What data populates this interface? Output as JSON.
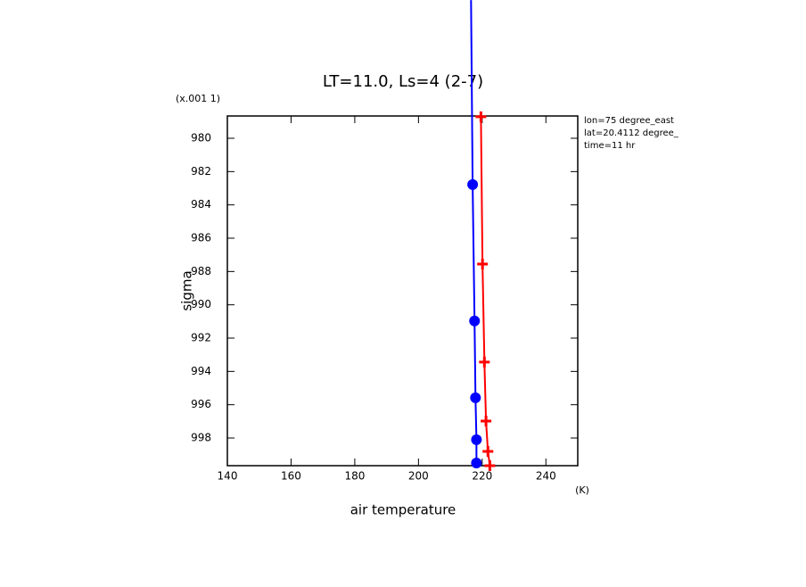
{
  "chart_data": {
    "type": "line",
    "title": "LT=11.0, Ls=4 (2-7)",
    "x_label": "air temperature",
    "y_label": "sigma",
    "y_scale_note": "(x.001 1)",
    "x_unit": "(K)",
    "annotations": [
      "lon=75 degree_east",
      "lat=20.4112 degree_",
      "time=11 hr"
    ],
    "xlim": [
      140,
      250
    ],
    "ylim": [
      999.66,
      978.66
    ],
    "xticks": [
      140,
      160,
      180,
      200,
      220,
      240
    ],
    "yticks": [
      980,
      982,
      984,
      986,
      988,
      990,
      992,
      994,
      996,
      998
    ],
    "series": [
      {
        "color": "#ff0000",
        "marker": "plus",
        "x": [
          219.6,
          220.1,
          220.7,
          221.2,
          221.8,
          222.4
        ],
        "values": [
          978.71,
          987.55,
          993.44,
          996.98,
          998.8,
          999.66
        ]
      },
      {
        "color": "#0000ff",
        "marker": "dot",
        "x": [
          216.5,
          217.0,
          217.6,
          217.9,
          218.2,
          218.2
        ],
        "values": [
          971.7,
          982.78,
          990.97,
          995.58,
          998.1,
          999.5
        ]
      }
    ]
  }
}
